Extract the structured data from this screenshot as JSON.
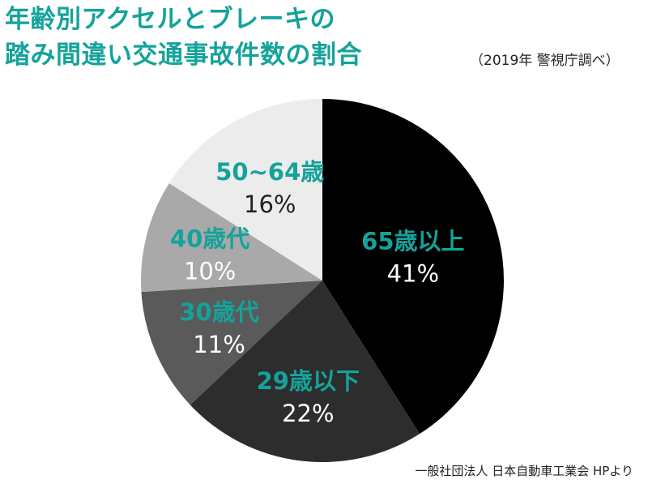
{
  "title": {
    "line1": "年齢別アクセルとブレーキの",
    "line2": "踏み間違い交通事故件数の割合"
  },
  "subnote": "（2019年 警視庁調べ）",
  "source": "一般社団法人 日本自動車工業会 HPより",
  "colors": {
    "title": "#14a39a",
    "label_accent": "#14a39a",
    "dark_text": "#222222",
    "light_text": "#ffffff"
  },
  "chart_data": {
    "type": "pie",
    "start": "12 o'clock",
    "direction": "clockwise",
    "slices": [
      {
        "label": "65歳以上",
        "value": 41,
        "pct_text": "41%",
        "color": "#000000",
        "pct_color": "#ffffff"
      },
      {
        "label": "29歳以下",
        "value": 22,
        "pct_text": "22%",
        "color": "#2d2d2d",
        "pct_color": "#ffffff"
      },
      {
        "label": "30歳代",
        "value": 11,
        "pct_text": "11%",
        "color": "#5a5a5a",
        "pct_color": "#ffffff"
      },
      {
        "label": "40歳代",
        "value": 10,
        "pct_text": "10%",
        "color": "#a9a9a9",
        "pct_color": "#ffffff"
      },
      {
        "label": "50~64歳",
        "value": 16,
        "pct_text": "16%",
        "color": "#ececec",
        "pct_color": "#222222"
      }
    ]
  }
}
